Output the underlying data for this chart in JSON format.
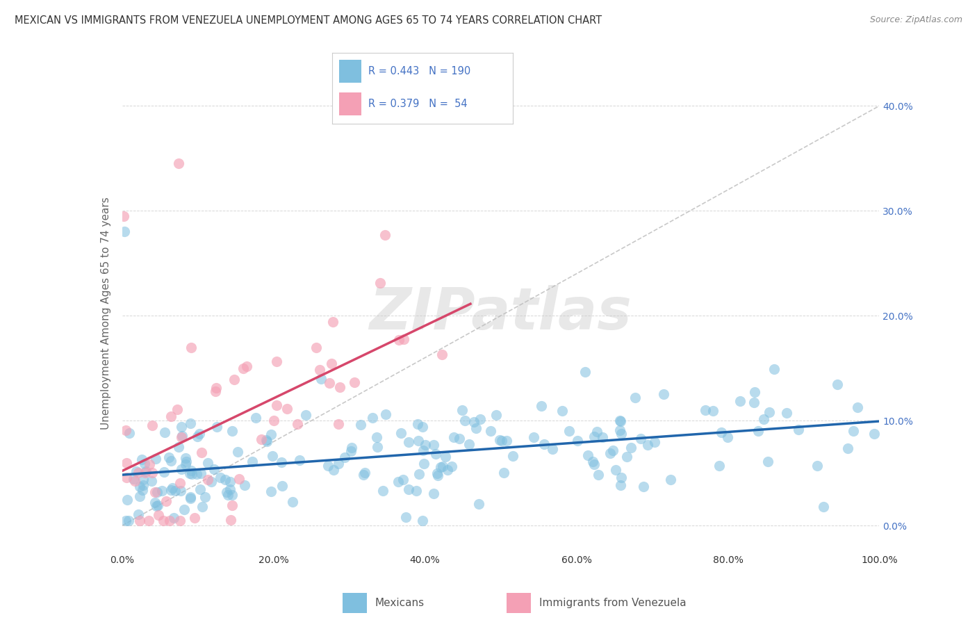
{
  "title": "MEXICAN VS IMMIGRANTS FROM VENEZUELA UNEMPLOYMENT AMONG AGES 65 TO 74 YEARS CORRELATION CHART",
  "source": "Source: ZipAtlas.com",
  "ylabel": "Unemployment Among Ages 65 to 74 years",
  "xlabel_ticks": [
    "0.0%",
    "20.0%",
    "40.0%",
    "60.0%",
    "80.0%",
    "100.0%"
  ],
  "ylabel_ticks": [
    "0.0%",
    "10.0%",
    "20.0%",
    "30.0%",
    "40.0%"
  ],
  "xlim": [
    0,
    1.0
  ],
  "ylim": [
    -0.025,
    0.43
  ],
  "blue_color": "#7fbfdf",
  "pink_color": "#f4a0b5",
  "blue_line_color": "#2166ac",
  "pink_line_color": "#d6476b",
  "grid_color": "#cccccc",
  "watermark_color": "#e8e8e8",
  "legend_color": "#4472c4",
  "legend_box_edge": "#cccccc",
  "tick_color": "#4472c4",
  "label_color": "#666666",
  "title_color": "#333333",
  "source_color": "#888888"
}
